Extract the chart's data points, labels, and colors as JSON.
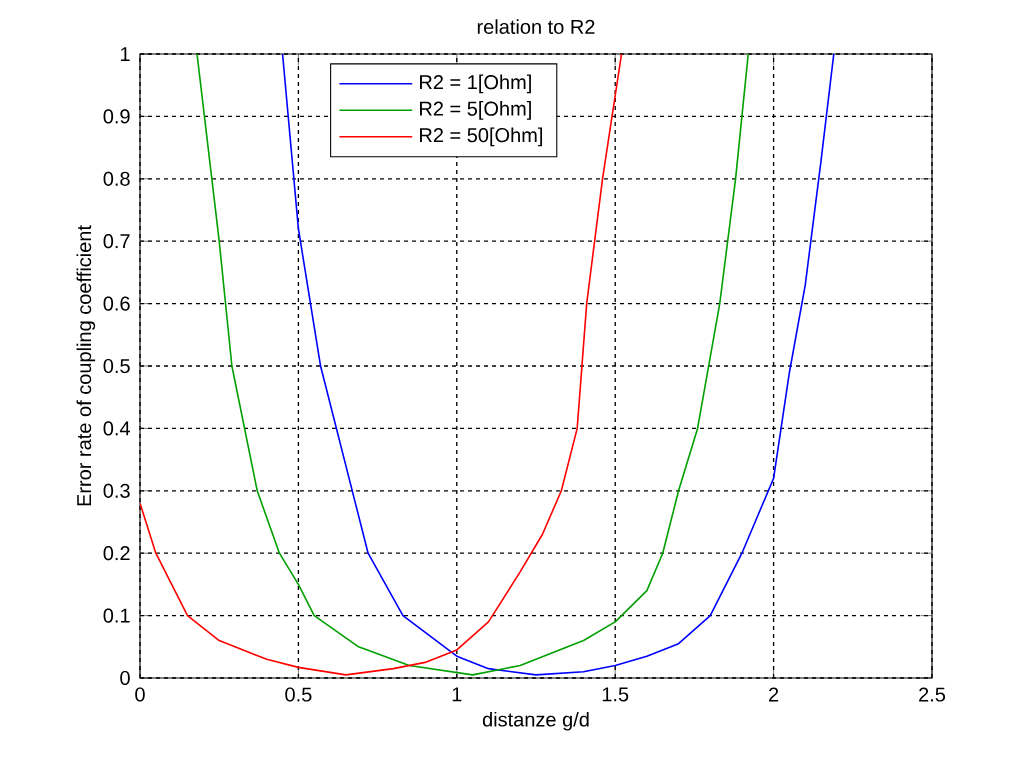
{
  "chart_data": {
    "type": "line",
    "title": "relation to R2",
    "xlabel": "distanze g/d",
    "ylabel": "Error rate of coupling coefficient",
    "xlim": [
      0,
      2.5
    ],
    "ylim": [
      0,
      1
    ],
    "xticks": [
      0,
      0.5,
      1,
      1.5,
      2,
      2.5
    ],
    "yticks": [
      0,
      0.1,
      0.2,
      0.3,
      0.4,
      0.5,
      0.6,
      0.7,
      0.8,
      0.9,
      1
    ],
    "grid": true,
    "legend": "top",
    "line_style": "solid",
    "marker": "none",
    "series": [
      {
        "name": "R2 = 1[Ohm]",
        "color": "#0000ff",
        "x": [
          0.45,
          0.5,
          0.57,
          0.62,
          0.67,
          0.72,
          0.83,
          1.0,
          1.1,
          1.25,
          1.4,
          1.5,
          1.6,
          1.7,
          1.8,
          1.9,
          2.0,
          2.05,
          2.1,
          2.15,
          2.19
        ],
        "values": [
          1,
          0.72,
          0.5,
          0.4,
          0.3,
          0.2,
          0.1,
          0.035,
          0.015,
          0.005,
          0.01,
          0.02,
          0.035,
          0.055,
          0.1,
          0.2,
          0.32,
          0.49,
          0.63,
          0.83,
          1
        ]
      },
      {
        "name": "R2 = 5[Ohm]",
        "color": "#00a000",
        "x": [
          0.18,
          0.25,
          0.29,
          0.33,
          0.37,
          0.44,
          0.5,
          0.55,
          0.69,
          0.85,
          1.05,
          1.2,
          1.3,
          1.4,
          1.5,
          1.6,
          1.65,
          1.7,
          1.76,
          1.83,
          1.88,
          1.92
        ],
        "values": [
          1,
          0.7,
          0.5,
          0.4,
          0.3,
          0.2,
          0.15,
          0.1,
          0.05,
          0.02,
          0.005,
          0.02,
          0.04,
          0.06,
          0.09,
          0.14,
          0.2,
          0.3,
          0.4,
          0.6,
          0.8,
          1
        ]
      },
      {
        "name": "R2 = 50[Ohm]",
        "color": "#ff0000",
        "x": [
          0,
          0.05,
          0.15,
          0.25,
          0.4,
          0.5,
          0.65,
          0.8,
          0.9,
          1.0,
          1.1,
          1.2,
          1.27,
          1.33,
          1.38,
          1.41,
          1.46,
          1.52
        ],
        "values": [
          0.28,
          0.2,
          0.1,
          0.06,
          0.03,
          0.017,
          0.005,
          0.015,
          0.025,
          0.045,
          0.09,
          0.17,
          0.23,
          0.3,
          0.4,
          0.6,
          0.8,
          1
        ]
      }
    ]
  }
}
